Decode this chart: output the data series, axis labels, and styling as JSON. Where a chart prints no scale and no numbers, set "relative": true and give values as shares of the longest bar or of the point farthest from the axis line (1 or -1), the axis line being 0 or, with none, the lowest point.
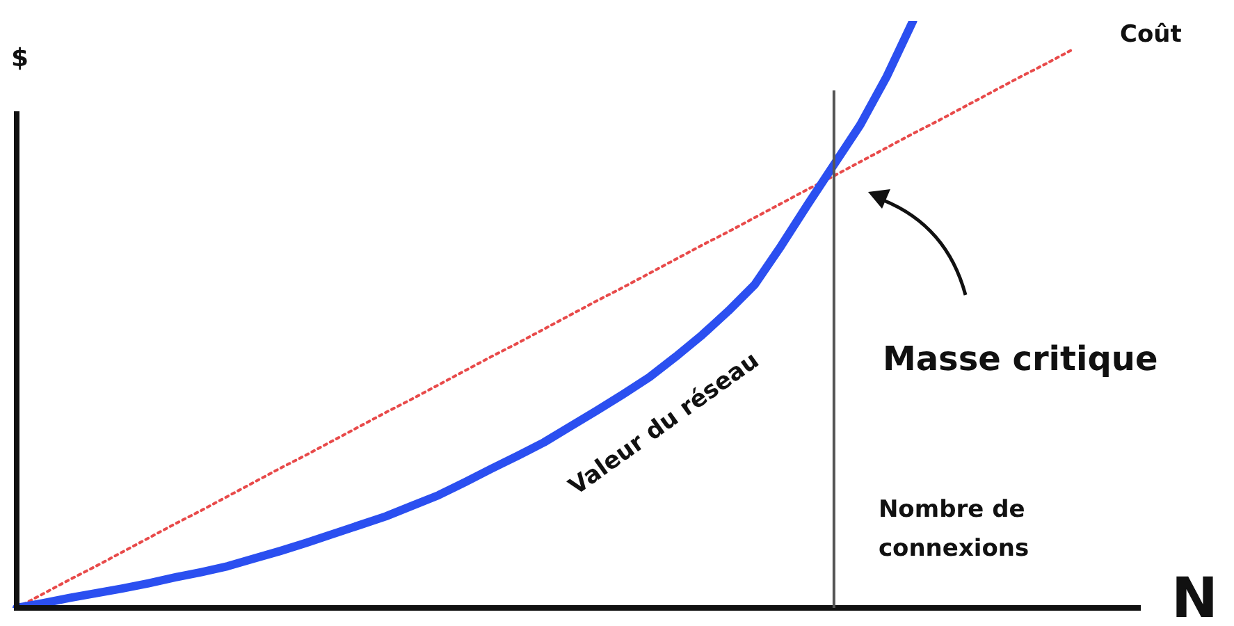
{
  "chart_data": {
    "type": "line",
    "relative": true,
    "xlabel": "N",
    "ylabel": "$",
    "grid": false,
    "legend": false,
    "marker": "none",
    "categories": [
      null,
      null,
      null,
      null,
      null,
      null,
      null,
      null,
      null,
      null,
      null,
      null,
      null,
      null,
      null,
      null,
      null,
      null,
      null,
      null,
      null,
      null,
      null,
      null,
      null,
      null,
      null,
      null,
      null,
      null,
      null,
      null,
      null,
      null,
      null,
      null,
      null,
      null,
      null,
      null,
      null
    ],
    "series": [
      {
        "name": "Coût",
        "color": "#e84a4a",
        "line_style": "dotted",
        "values": [
          0,
          0.024,
          0.048,
          0.071,
          0.095,
          0.119,
          0.143,
          0.166,
          0.19,
          0.214,
          0.238,
          0.261,
          0.285,
          0.309,
          0.333,
          0.356,
          0.38,
          0.404,
          0.428,
          0.451,
          0.475,
          0.499,
          0.523,
          0.546,
          0.57,
          0.594,
          0.618,
          0.641,
          0.665,
          0.689,
          0.713,
          0.736,
          0.76,
          0.784,
          0.808,
          0.831,
          0.855,
          0.879,
          0.903,
          0.926,
          0.95
        ]
      },
      {
        "name": "Valeur du réseau",
        "color": "#2b4ff0",
        "line_style": "solid",
        "values": [
          0,
          0.008,
          0.017,
          0.025,
          0.033,
          0.042,
          0.052,
          0.061,
          0.071,
          0.084,
          0.097,
          0.111,
          0.126,
          0.141,
          0.156,
          0.174,
          0.192,
          0.214,
          0.237,
          0.259,
          0.282,
          0.309,
          0.336,
          0.364,
          0.393,
          0.428,
          0.465,
          0.506,
          0.551,
          0.617,
          0.687,
          0.755,
          0.823,
          0.905,
          1.0,
          null,
          null,
          null,
          null,
          null,
          null
        ]
      }
    ],
    "annotations": [
      "Masse critique",
      "Nombre de connexions"
    ]
  }
}
